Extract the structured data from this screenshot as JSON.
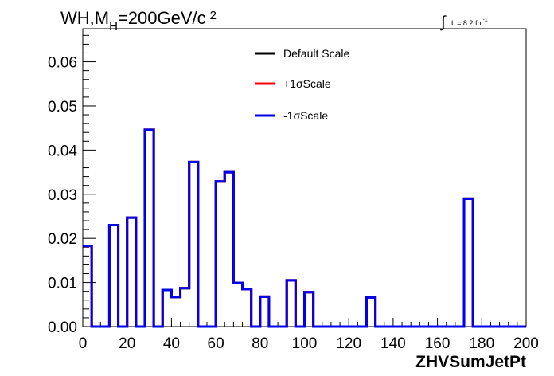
{
  "chart_data": {
    "type": "line",
    "subtype": "step-histogram",
    "title": {
      "prefix": "WH,M",
      "subscript": "H",
      "suffix": "=200GeV/c",
      "superscript": "2"
    },
    "lumi": {
      "symbol": "∫",
      "text": "L = 8.2 fb",
      "superscript": "-1"
    },
    "xlabel": "ZHVSumJetPt",
    "ylabel": "",
    "xlim": [
      0,
      200
    ],
    "ylim": [
      0,
      0.0675
    ],
    "x_ticks": [
      0,
      20,
      40,
      60,
      80,
      100,
      120,
      140,
      160,
      180,
      200
    ],
    "y_ticks": [
      0.0,
      0.01,
      0.02,
      0.03,
      0.04,
      0.05,
      0.06
    ],
    "y_tick_labels": [
      "0.00",
      "0.01",
      "0.02",
      "0.03",
      "0.04",
      "0.05",
      "0.06"
    ],
    "grid": false,
    "legend_position": "top-center",
    "bin_width": 4,
    "bin_edges_start": 0,
    "series": [
      {
        "name": "Default Scale",
        "color": "#000000",
        "values": [
          0.0183,
          0,
          0,
          0.023,
          0,
          0.0247,
          0,
          0.0446,
          0,
          0.0083,
          0.0067,
          0.0087,
          0.0373,
          0,
          0,
          0.0329,
          0.035,
          0.0099,
          0.0085,
          0,
          0.0068,
          0,
          0,
          0.0105,
          0,
          0.0078,
          0,
          0,
          0,
          0,
          0,
          0,
          0.0066,
          0,
          0,
          0,
          0,
          0,
          0,
          0,
          0,
          0,
          0,
          0.029,
          0,
          0,
          0,
          0,
          0,
          0
        ]
      },
      {
        "name": "+1σScale",
        "color": "#ff0000",
        "values": [
          0.0183,
          0,
          0,
          0.023,
          0,
          0.0247,
          0,
          0.0446,
          0,
          0.0083,
          0.0067,
          0.0087,
          0.0373,
          0,
          0,
          0.0329,
          0.035,
          0.0099,
          0.0085,
          0,
          0.0068,
          0,
          0,
          0.0105,
          0,
          0.0078,
          0,
          0,
          0,
          0,
          0,
          0,
          0.0066,
          0,
          0,
          0,
          0,
          0,
          0,
          0,
          0,
          0,
          0,
          0.029,
          0,
          0,
          0,
          0,
          0,
          0
        ]
      },
      {
        "name": "-1σScale",
        "color": "#0000ee",
        "values": [
          0.0183,
          0,
          0,
          0.023,
          0,
          0.0247,
          0,
          0.0446,
          0,
          0.0083,
          0.0067,
          0.0087,
          0.0373,
          0,
          0,
          0.0329,
          0.035,
          0.0099,
          0.0085,
          0,
          0.0068,
          0,
          0,
          0.0105,
          0,
          0.0078,
          0,
          0,
          0,
          0,
          0,
          0,
          0.0066,
          0,
          0,
          0,
          0,
          0,
          0,
          0,
          0,
          0,
          0,
          0.029,
          0,
          0,
          0,
          0,
          0,
          0
        ]
      }
    ]
  }
}
